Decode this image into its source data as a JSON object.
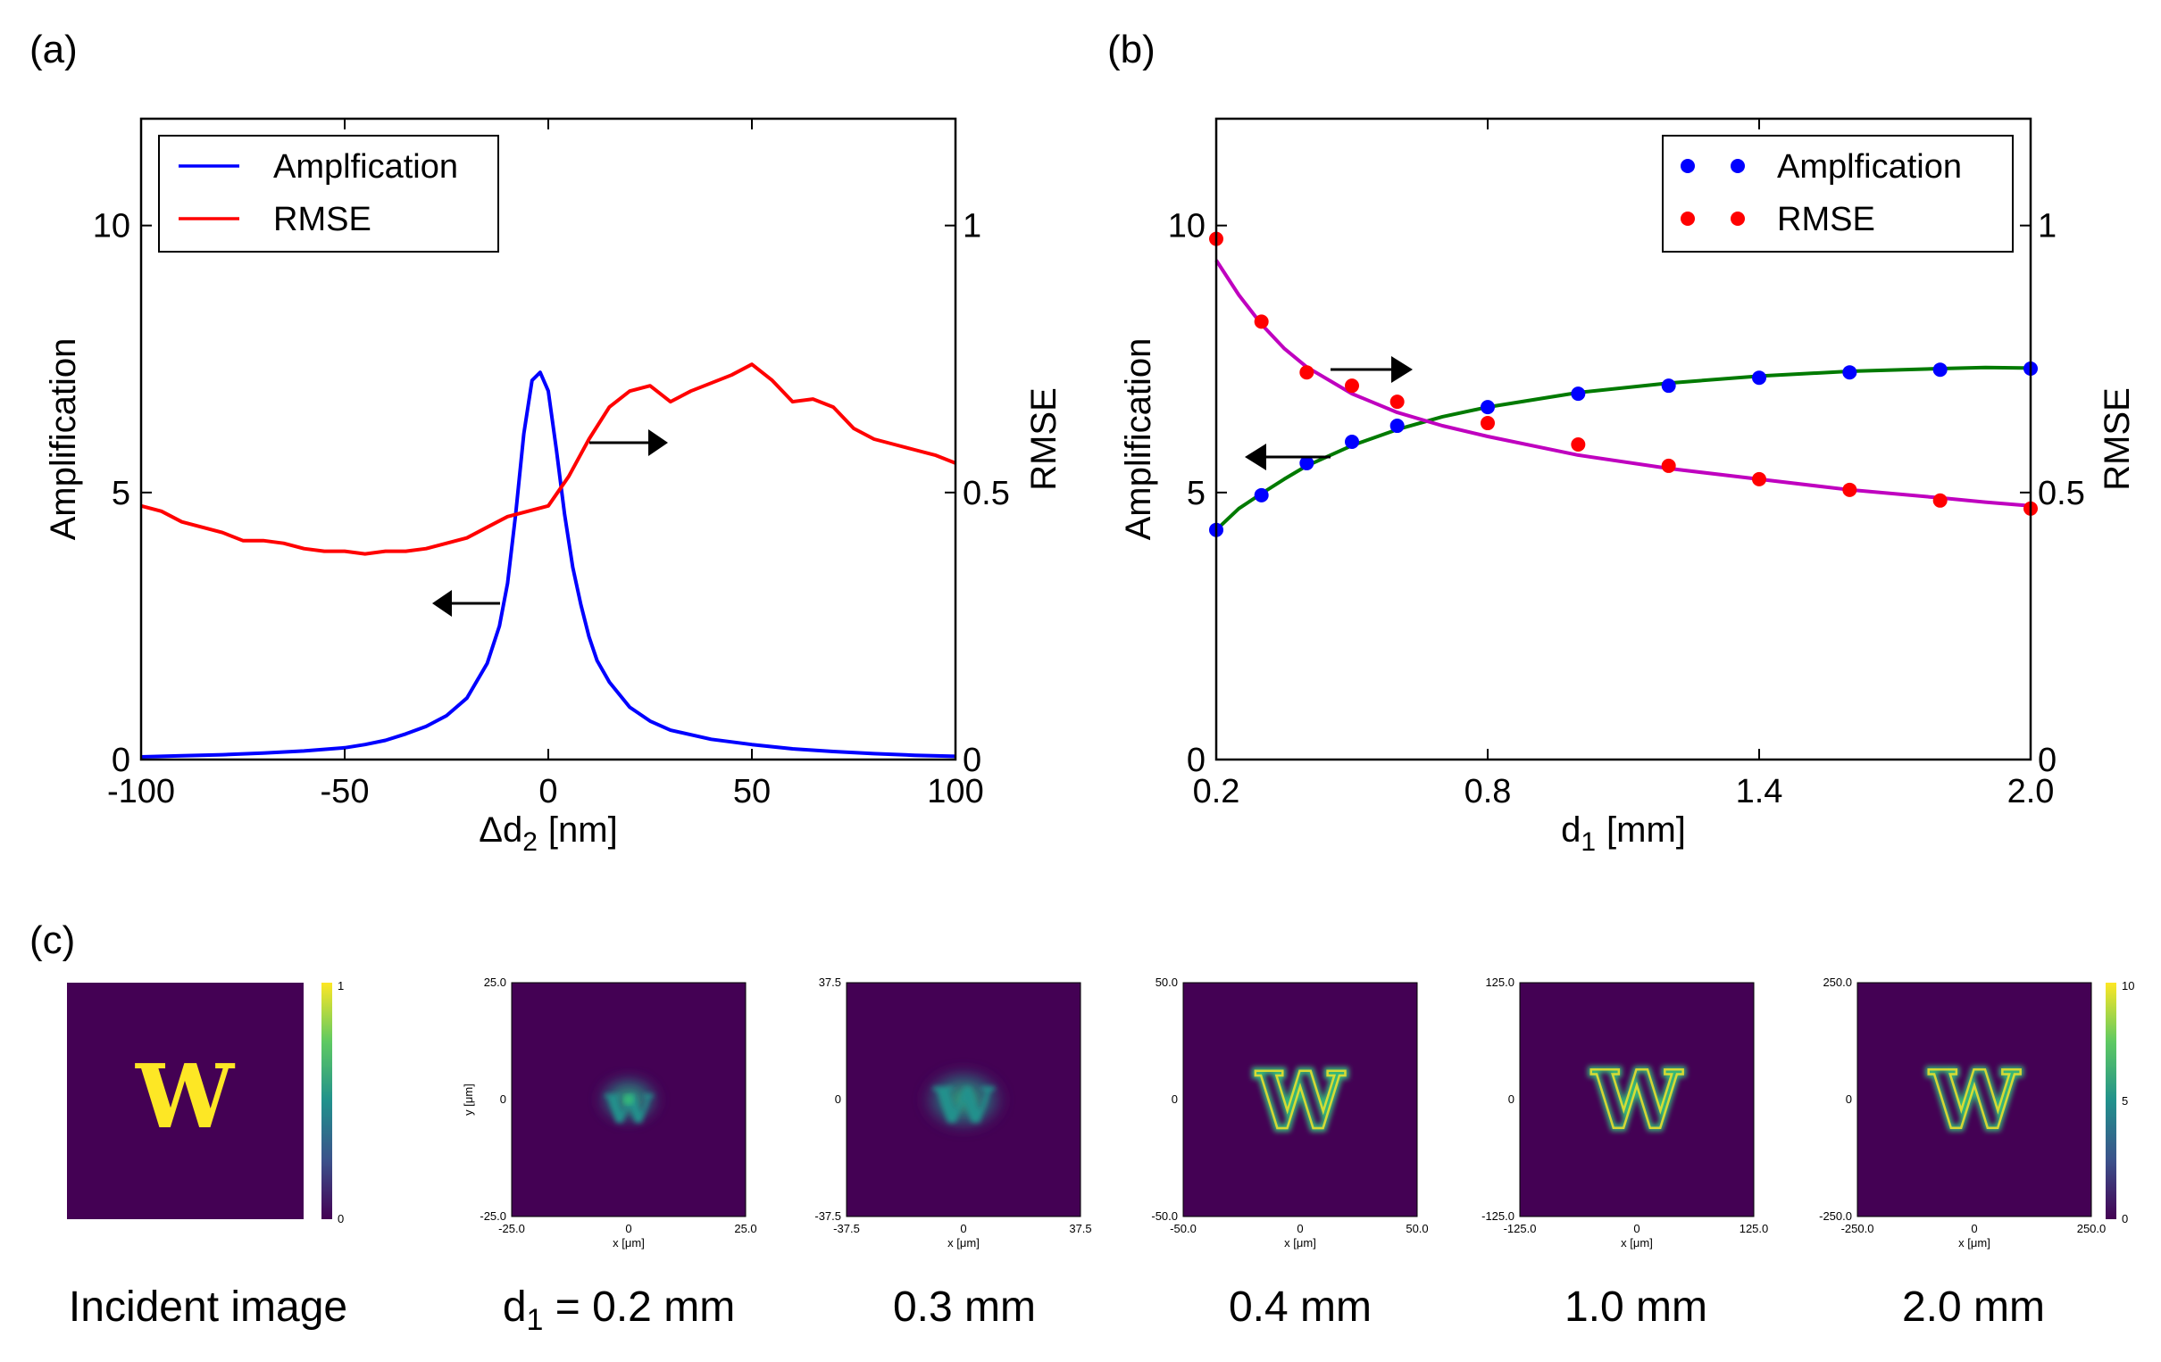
{
  "panels": {
    "a": "(a)",
    "b": "(b)",
    "c": "(c)"
  },
  "colors": {
    "blue": "#0000ff",
    "red": "#ff0000",
    "magenta": "#bf00bf",
    "green": "#007a00",
    "viridis_bg": "#440154",
    "viridis_yellow": "#fde725",
    "viridis_green": "#35b779",
    "viridis_teal": "#21918c"
  },
  "chart_data": [
    {
      "id": "a",
      "type": "line",
      "title": "",
      "xlabel": "Δd",
      "xlabel_sub": "2",
      "xlabel_unit": "[nm]",
      "ylabel": "Amplification",
      "y2label": "RMSE",
      "xlim": [
        -100,
        100
      ],
      "ylim": [
        0,
        12
      ],
      "y2lim": [
        0,
        1.2
      ],
      "xticks": [
        "-100",
        "-50",
        "0",
        "50",
        "100"
      ],
      "yticks": [
        "0",
        "5",
        "10"
      ],
      "y2ticks": [
        "0",
        "0.5",
        "1"
      ],
      "legend": {
        "position": "top-left",
        "entries": [
          "Amplfication",
          "RMSE"
        ]
      },
      "series": [
        {
          "name": "Amplfication",
          "axis": "left",
          "x": [
            -100,
            -90,
            -80,
            -70,
            -60,
            -50,
            -45,
            -40,
            -35,
            -30,
            -25,
            -20,
            -15,
            -12,
            -10,
            -8,
            -6,
            -4,
            -2,
            0,
            2,
            4,
            6,
            8,
            10,
            12,
            15,
            20,
            25,
            30,
            40,
            50,
            60,
            70,
            80,
            90,
            100
          ],
          "y": [
            0.05,
            0.07,
            0.09,
            0.12,
            0.16,
            0.22,
            0.28,
            0.36,
            0.48,
            0.62,
            0.82,
            1.15,
            1.8,
            2.5,
            3.3,
            4.6,
            6.1,
            7.1,
            7.25,
            6.9,
            5.8,
            4.6,
            3.6,
            2.9,
            2.3,
            1.85,
            1.45,
            0.98,
            0.72,
            0.55,
            0.38,
            0.28,
            0.2,
            0.15,
            0.11,
            0.08,
            0.06
          ]
        },
        {
          "name": "RMSE",
          "axis": "right",
          "x": [
            -100,
            -95,
            -90,
            -85,
            -80,
            -75,
            -70,
            -65,
            -60,
            -55,
            -50,
            -45,
            -40,
            -35,
            -30,
            -25,
            -20,
            -15,
            -10,
            -5,
            0,
            5,
            10,
            15,
            20,
            25,
            30,
            35,
            40,
            45,
            50,
            55,
            60,
            65,
            70,
            75,
            80,
            85,
            90,
            95,
            100
          ],
          "y": [
            0.475,
            0.465,
            0.445,
            0.435,
            0.425,
            0.41,
            0.41,
            0.405,
            0.395,
            0.39,
            0.39,
            0.385,
            0.39,
            0.39,
            0.395,
            0.405,
            0.415,
            0.435,
            0.455,
            0.465,
            0.475,
            0.53,
            0.6,
            0.66,
            0.69,
            0.7,
            0.67,
            0.69,
            0.705,
            0.72,
            0.74,
            0.71,
            0.67,
            0.675,
            0.66,
            0.62,
            0.6,
            0.59,
            0.58,
            0.57,
            0.555
          ]
        }
      ],
      "annotations": [
        {
          "arrow": "left",
          "label_series": "Amplfication"
        },
        {
          "arrow": "right",
          "label_series": "RMSE"
        }
      ]
    },
    {
      "id": "b",
      "type": "scatter",
      "title": "",
      "xlabel": "d",
      "xlabel_sub": "1",
      "xlabel_unit": "[mm]",
      "ylabel": "Amplification",
      "y2label": "RMSE",
      "xlim": [
        0.2,
        2.0
      ],
      "ylim": [
        0,
        12
      ],
      "y2lim": [
        0,
        1.2
      ],
      "xticks": [
        "0.2",
        "0.8",
        "1.4",
        "2.0"
      ],
      "yticks": [
        "0",
        "5",
        "10"
      ],
      "y2ticks": [
        "0",
        "0.5",
        "1"
      ],
      "legend": {
        "position": "top-right",
        "entries": [
          "Amplfication",
          "RMSE"
        ]
      },
      "series": [
        {
          "name": "Amplfication",
          "axis": "left",
          "marker": "dot",
          "x": [
            0.2,
            0.3,
            0.4,
            0.5,
            0.6,
            0.8,
            1.0,
            1.2,
            1.4,
            1.6,
            1.8,
            2.0
          ],
          "y": [
            4.3,
            4.95,
            5.55,
            5.95,
            6.25,
            6.6,
            6.85,
            7.0,
            7.15,
            7.25,
            7.3,
            7.32
          ]
        },
        {
          "name": "RMSE",
          "axis": "right",
          "marker": "dot",
          "x": [
            0.2,
            0.3,
            0.4,
            0.5,
            0.6,
            0.8,
            1.0,
            1.2,
            1.4,
            1.6,
            1.8,
            2.0
          ],
          "y": [
            0.975,
            0.82,
            0.725,
            0.7,
            0.67,
            0.63,
            0.59,
            0.55,
            0.525,
            0.505,
            0.485,
            0.47
          ]
        },
        {
          "name": "Amplification fit",
          "axis": "left",
          "type": "line",
          "x": [
            0.2,
            0.25,
            0.3,
            0.35,
            0.4,
            0.5,
            0.6,
            0.7,
            0.8,
            1.0,
            1.2,
            1.4,
            1.6,
            1.8,
            1.9,
            2.0
          ],
          "y": [
            4.3,
            4.7,
            4.98,
            5.25,
            5.5,
            5.88,
            6.18,
            6.42,
            6.6,
            6.87,
            7.05,
            7.18,
            7.27,
            7.32,
            7.34,
            7.33
          ]
        },
        {
          "name": "RMSE fit",
          "axis": "right",
          "type": "line",
          "x": [
            0.2,
            0.25,
            0.3,
            0.35,
            0.4,
            0.5,
            0.6,
            0.7,
            0.8,
            1.0,
            1.2,
            1.4,
            1.6,
            1.8,
            1.9,
            2.0
          ],
          "y": [
            0.935,
            0.87,
            0.815,
            0.77,
            0.735,
            0.685,
            0.65,
            0.625,
            0.605,
            0.57,
            0.545,
            0.525,
            0.505,
            0.49,
            0.482,
            0.475
          ]
        }
      ],
      "annotations": [
        {
          "arrow": "left",
          "label_series": "Amplfication"
        },
        {
          "arrow": "right",
          "label_series": "RMSE"
        }
      ]
    },
    {
      "id": "c",
      "type": "heatmap",
      "images": [
        {
          "caption": "Incident image",
          "letter": "W",
          "colorbar_ticks": [
            "1",
            "0"
          ]
        },
        {
          "caption_pre": "d",
          "caption_sub": "1",
          "caption_post": " = 0.2 mm",
          "extent": [
            "25.0",
            "0",
            "-25.0"
          ],
          "xticks": [
            "-25.0",
            "0",
            "25.0"
          ],
          "ylabel": "y [μm]",
          "xlabel": "x [μm]",
          "letter": "w"
        },
        {
          "caption": "0.3 mm",
          "extent": [
            "37.5",
            "0",
            "-37.5"
          ],
          "xticks": [
            "-37.5",
            "0",
            "37.5"
          ],
          "xlabel": "x [μm]",
          "letter": "w"
        },
        {
          "caption": "0.4 mm",
          "extent": [
            "50.0",
            "0",
            "-50.0"
          ],
          "xticks": [
            "-50.0",
            "0",
            "50.0"
          ],
          "xlabel": "x [μm]",
          "letter": "W"
        },
        {
          "caption": "1.0 mm",
          "extent": [
            "125.0",
            "0",
            "-125.0"
          ],
          "xticks": [
            "-125.0",
            "0",
            "125.0"
          ],
          "xlabel": "x [μm]",
          "letter": "W"
        },
        {
          "caption": "2.0 mm",
          "extent": [
            "250.0",
            "0",
            "-250.0"
          ],
          "xticks": [
            "-250.0",
            "0",
            "250.0"
          ],
          "xlabel": "x [μm]",
          "letter": "W",
          "colorbar_ticks": [
            "10",
            "5",
            "0"
          ]
        }
      ]
    }
  ]
}
